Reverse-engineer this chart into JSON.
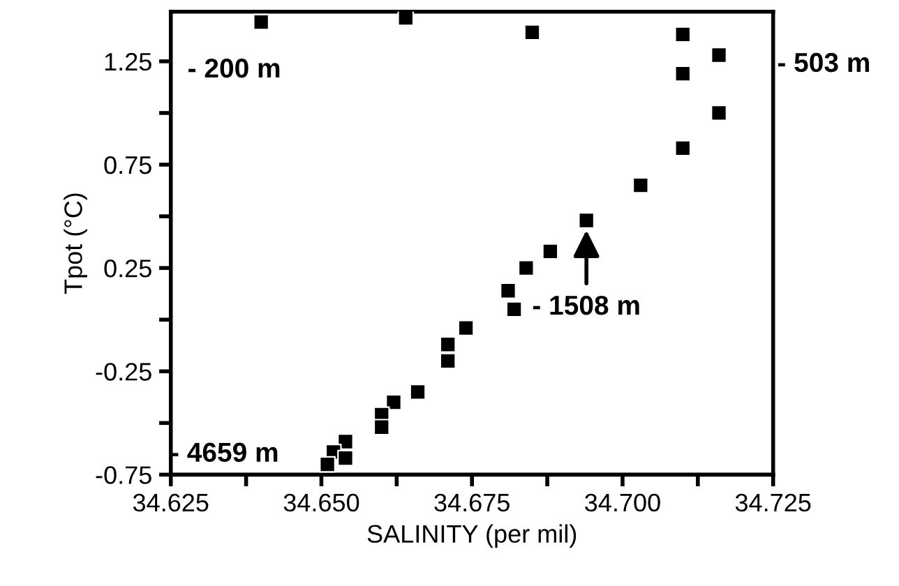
{
  "chart_data": {
    "type": "scatter",
    "xlabel": "SALINITY (per mil)",
    "ylabel": "Tpot (°C)",
    "x": [
      34.64,
      34.664,
      34.685,
      34.71,
      34.716,
      34.71,
      34.716,
      34.71,
      34.703,
      34.694,
      34.688,
      34.684,
      34.681,
      34.682,
      34.674,
      34.671,
      34.671,
      34.666,
      34.662,
      34.66,
      34.66,
      34.654,
      34.652,
      34.654,
      34.651
    ],
    "values": [
      1.44,
      1.46,
      1.39,
      1.38,
      1.28,
      1.19,
      1.0,
      0.83,
      0.65,
      0.48,
      0.33,
      0.25,
      0.14,
      0.05,
      -0.04,
      -0.12,
      -0.2,
      -0.35,
      -0.4,
      -0.46,
      -0.52,
      -0.59,
      -0.64,
      -0.67,
      -0.7
    ],
    "color": "#000000",
    "marker": "square",
    "xlim": [
      34.625,
      34.725
    ],
    "ylim": [
      -0.75,
      1.49
    ],
    "xticks": [
      34.625,
      {
        "value": 34.6375,
        "label": null
      },
      {
        "value": 34.65,
        "label": "34.650"
      },
      {
        "value": 34.6625,
        "label": null
      },
      34.675,
      {
        "value": 34.6875,
        "label": null
      },
      {
        "value": 34.7,
        "label": "34.700"
      },
      {
        "value": 34.7125,
        "label": null
      },
      34.725
    ],
    "yticks": [
      -0.75,
      {
        "value": -0.5,
        "label": null
      },
      -0.25,
      {
        "value": 0,
        "label": null
      },
      0.25,
      {
        "value": 0.5,
        "label": null
      },
      0.75,
      {
        "value": 1.0,
        "label": null
      },
      1.25
    ],
    "grid": false,
    "annotations": [
      {
        "text": "- 200 m",
        "x": 34.64,
        "y": 1.44
      },
      {
        "text": "- 503 m",
        "x": 34.716,
        "y": 1.28
      },
      {
        "text": "- 1508 m",
        "x": 34.694,
        "y": 0.48
      },
      {
        "text": "- 4659 m",
        "x": 34.651,
        "y": -0.7
      }
    ]
  }
}
